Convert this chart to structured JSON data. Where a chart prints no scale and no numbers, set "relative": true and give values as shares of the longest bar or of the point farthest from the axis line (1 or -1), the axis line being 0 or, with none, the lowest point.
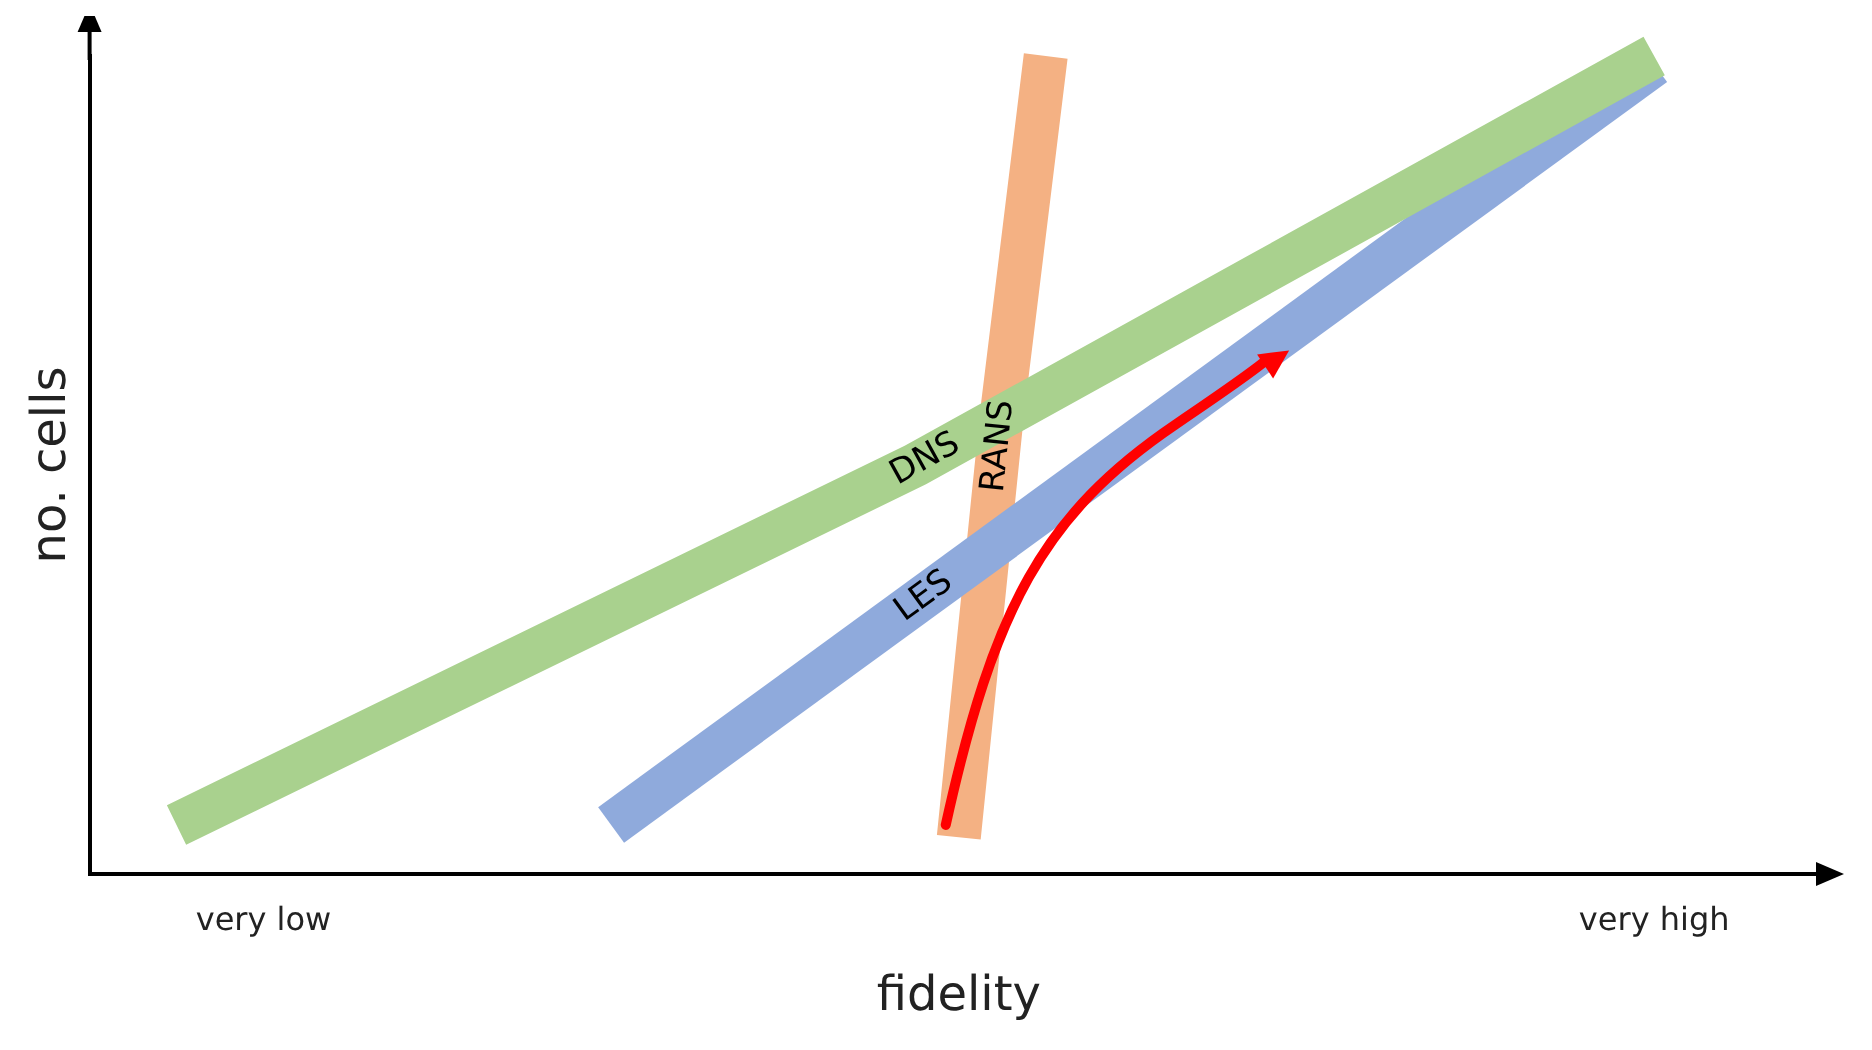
{
  "chart_data": {
    "type": "line",
    "relative": true,
    "xlabel": "fidelity",
    "ylabel": "no. cells",
    "legend": false,
    "grid": false,
    "marker": "none",
    "line_style": "solid",
    "categories": [
      null,
      null,
      null,
      null,
      "very low",
      null,
      null,
      null,
      null,
      null,
      null,
      null,
      null,
      null,
      null,
      null,
      null,
      null,
      null,
      null,
      null,
      null,
      null,
      null,
      null,
      null,
      null,
      null,
      null,
      null,
      null,
      null,
      null,
      null,
      null,
      null,
      "very high",
      null,
      null,
      null,
      null
    ],
    "series": [
      {
        "name": "DNS",
        "color": "#a9d18e",
        "values": [
          null,
          null,
          0.06,
          null,
          null,
          null,
          null,
          null,
          null,
          null,
          null,
          null,
          null,
          null,
          null,
          null,
          null,
          null,
          null,
          0.5,
          null,
          null,
          null,
          null,
          null,
          null,
          null,
          null,
          null,
          null,
          null,
          null,
          null,
          null,
          null,
          null,
          1.0,
          null,
          null,
          null,
          null
        ]
      },
      {
        "name": "LES",
        "color": "#8faadc",
        "values": [
          null,
          null,
          null,
          null,
          null,
          null,
          null,
          null,
          null,
          null,
          null,
          null,
          0.06,
          null,
          null,
          null,
          null,
          null,
          null,
          null,
          null,
          null,
          null,
          null,
          null,
          null,
          null,
          null,
          null,
          null,
          null,
          null,
          null,
          null,
          null,
          null,
          0.99,
          null,
          null,
          null,
          null
        ]
      },
      {
        "name": "RANS",
        "color": "#f4b183",
        "values": [
          null,
          null,
          null,
          null,
          null,
          null,
          null,
          null,
          null,
          null,
          null,
          null,
          null,
          null,
          null,
          null,
          null,
          null,
          null,
          null,
          0.045,
          0.566,
          1.0,
          null,
          null,
          null,
          null,
          null,
          null,
          null,
          null,
          null,
          null,
          null,
          null,
          null,
          null,
          null,
          null,
          null,
          null
        ]
      }
    ]
  }
}
